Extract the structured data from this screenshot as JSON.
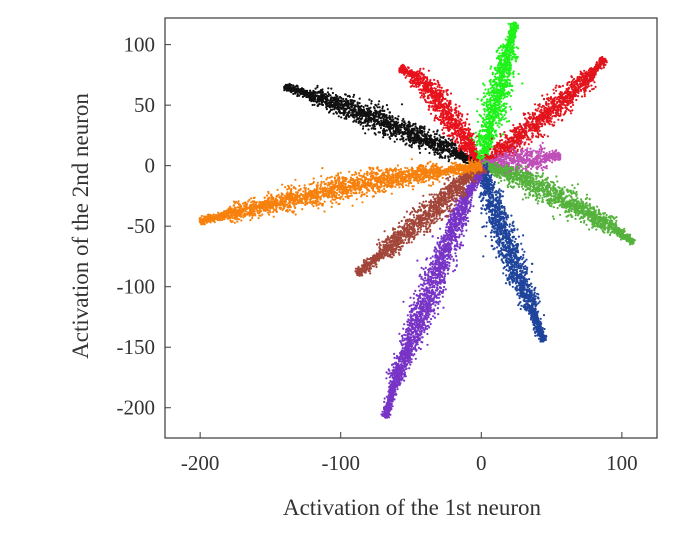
{
  "chart_data": {
    "type": "scatter",
    "xlabel": "Activation of the 1st neuron",
    "ylabel": "Activation of the 2nd neuron",
    "xlim": [
      -225,
      125
    ],
    "ylim": [
      -225,
      122
    ],
    "x_ticks": [
      -200,
      -100,
      0,
      100
    ],
    "x_tick_labels": [
      "-200",
      "-100",
      "0",
      "100"
    ],
    "y_ticks": [
      100,
      50,
      0,
      -50,
      -100,
      -150,
      -200
    ],
    "y_tick_labels": [
      "100",
      "50",
      "0",
      "-50",
      "-100",
      "-150",
      "-200"
    ],
    "grid": false,
    "legend": "none",
    "series": [
      {
        "color": "#111111",
        "points": [
          [
            0,
            0
          ],
          [
            -20,
            12
          ],
          [
            -40,
            22
          ],
          [
            -60,
            32
          ],
          [
            -80,
            41
          ],
          [
            -100,
            50
          ],
          [
            -120,
            58
          ],
          [
            -140,
            65
          ]
        ]
      },
      {
        "color": "#e8111b",
        "points": [
          [
            0,
            0
          ],
          [
            -8,
            15
          ],
          [
            -18,
            32
          ],
          [
            -28,
            50
          ],
          [
            -38,
            64
          ],
          [
            -48,
            75
          ],
          [
            -58,
            80
          ]
        ]
      },
      {
        "color": "#1ff21a",
        "points": [
          [
            0,
            0
          ],
          [
            3,
            15
          ],
          [
            7,
            35
          ],
          [
            12,
            60
          ],
          [
            16,
            80
          ],
          [
            20,
            100
          ],
          [
            24,
            118
          ]
        ]
      },
      {
        "color": "#e2141c",
        "points": [
          [
            0,
            0
          ],
          [
            12,
            10
          ],
          [
            28,
            25
          ],
          [
            45,
            42
          ],
          [
            62,
            58
          ],
          [
            77,
            74
          ],
          [
            88,
            88
          ]
        ]
      },
      {
        "color": "#c04fb8",
        "points": [
          [
            0,
            0
          ],
          [
            10,
            1
          ],
          [
            22,
            3
          ],
          [
            34,
            5
          ],
          [
            46,
            7
          ],
          [
            56,
            9
          ]
        ]
      },
      {
        "color": "#55b23c",
        "points": [
          [
            0,
            0
          ],
          [
            15,
            -5
          ],
          [
            35,
            -14
          ],
          [
            55,
            -26
          ],
          [
            75,
            -38
          ],
          [
            95,
            -52
          ],
          [
            108,
            -64
          ]
        ]
      },
      {
        "color": "#1f449c",
        "points": [
          [
            0,
            0
          ],
          [
            6,
            -20
          ],
          [
            12,
            -45
          ],
          [
            20,
            -70
          ],
          [
            28,
            -95
          ],
          [
            36,
            -118
          ],
          [
            44,
            -145
          ]
        ]
      },
      {
        "color": "#7834c6",
        "points": [
          [
            0,
            0
          ],
          [
            -12,
            -30
          ],
          [
            -22,
            -60
          ],
          [
            -32,
            -90
          ],
          [
            -42,
            -120
          ],
          [
            -52,
            -150
          ],
          [
            -62,
            -180
          ],
          [
            -68,
            -208
          ]
        ]
      },
      {
        "color": "#a3463a",
        "points": [
          [
            0,
            0
          ],
          [
            -15,
            -15
          ],
          [
            -30,
            -32
          ],
          [
            -50,
            -52
          ],
          [
            -70,
            -72
          ],
          [
            -88,
            -90
          ]
        ]
      },
      {
        "color": "#f7810d",
        "points": [
          [
            0,
            0
          ],
          [
            -30,
            -5
          ],
          [
            -60,
            -10
          ],
          [
            -90,
            -16
          ],
          [
            -120,
            -24
          ],
          [
            -150,
            -32
          ],
          [
            -180,
            -40
          ],
          [
            -200,
            -46
          ]
        ]
      }
    ]
  }
}
